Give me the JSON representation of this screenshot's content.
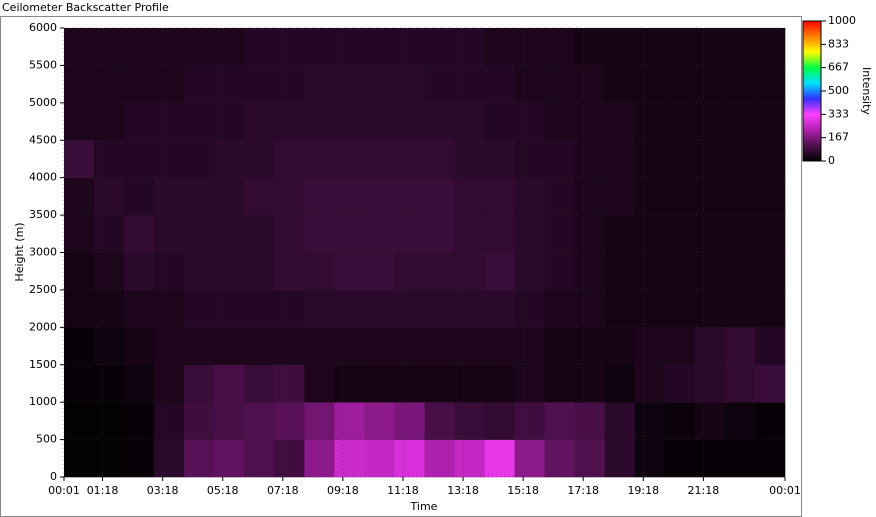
{
  "chart_data": {
    "type": "heatmap",
    "title": "Ceilometer Backscatter Profile",
    "x_label": "Time",
    "y_label": "Height (m)",
    "colorbar_label": "Intensity",
    "xbins": [
      1,
      61,
      121,
      181,
      241,
      301,
      361,
      421,
      481,
      541,
      601,
      661,
      721,
      781,
      841,
      901,
      961,
      1021,
      1081,
      1141,
      1201,
      1261,
      1321,
      1381,
      1441
    ],
    "ybins": [
      0,
      500,
      1000,
      1500,
      2000,
      2500,
      3000,
      3500,
      4000,
      4500,
      5000,
      5500,
      6000
    ],
    "values": [
      [
        5,
        5,
        10,
        60,
        120,
        130,
        110,
        90,
        180,
        260,
        250,
        280,
        220,
        250,
        300,
        180,
        130,
        110,
        60,
        20,
        10,
        10,
        10,
        10
      ],
      [
        5,
        5,
        10,
        50,
        90,
        100,
        110,
        120,
        150,
        200,
        180,
        160,
        100,
        80,
        70,
        90,
        110,
        100,
        60,
        20,
        15,
        30,
        20,
        10
      ],
      [
        10,
        10,
        20,
        40,
        80,
        100,
        80,
        90,
        40,
        30,
        30,
        30,
        30,
        30,
        30,
        40,
        30,
        30,
        20,
        40,
        50,
        60,
        70,
        80
      ],
      [
        10,
        20,
        30,
        40,
        40,
        40,
        40,
        40,
        40,
        40,
        40,
        40,
        40,
        40,
        40,
        40,
        30,
        30,
        30,
        40,
        40,
        60,
        70,
        50
      ],
      [
        30,
        30,
        40,
        40,
        50,
        50,
        50,
        50,
        60,
        60,
        60,
        60,
        60,
        60,
        60,
        50,
        40,
        40,
        30,
        30,
        30,
        30,
        30,
        30
      ],
      [
        30,
        40,
        60,
        50,
        60,
        60,
        60,
        70,
        70,
        80,
        80,
        70,
        70,
        70,
        80,
        60,
        50,
        40,
        30,
        30,
        30,
        30,
        30,
        30
      ],
      [
        40,
        50,
        70,
        60,
        60,
        60,
        60,
        70,
        80,
        80,
        80,
        80,
        80,
        70,
        70,
        60,
        50,
        40,
        30,
        30,
        30,
        30,
        30,
        30
      ],
      [
        40,
        60,
        50,
        60,
        60,
        60,
        70,
        70,
        80,
        80,
        80,
        80,
        80,
        70,
        70,
        60,
        50,
        40,
        40,
        30,
        30,
        30,
        30,
        30
      ],
      [
        80,
        50,
        50,
        50,
        50,
        60,
        60,
        70,
        70,
        70,
        70,
        70,
        70,
        60,
        60,
        50,
        50,
        40,
        40,
        30,
        30,
        30,
        30,
        30
      ],
      [
        40,
        40,
        50,
        50,
        50,
        50,
        60,
        60,
        60,
        60,
        60,
        60,
        60,
        60,
        50,
        50,
        40,
        40,
        40,
        30,
        30,
        30,
        30,
        30
      ],
      [
        40,
        40,
        40,
        40,
        50,
        50,
        50,
        50,
        60,
        60,
        60,
        60,
        50,
        50,
        50,
        40,
        40,
        40,
        30,
        30,
        30,
        30,
        30,
        30
      ],
      [
        40,
        40,
        40,
        40,
        40,
        40,
        50,
        50,
        50,
        50,
        50,
        50,
        50,
        50,
        40,
        40,
        40,
        30,
        30,
        30,
        30,
        30,
        30,
        30
      ]
    ],
    "xlim": [
      1,
      1441
    ],
    "xticks": [
      {
        "value": 1,
        "label": "00:01"
      },
      {
        "value": 78,
        "label": "01:18"
      },
      {
        "value": 198,
        "label": "03:18"
      },
      {
        "value": 318,
        "label": "05:18"
      },
      {
        "value": 438,
        "label": "07:18"
      },
      {
        "value": 558,
        "label": "09:18"
      },
      {
        "value": 678,
        "label": "11:18"
      },
      {
        "value": 798,
        "label": "13:18"
      },
      {
        "value": 918,
        "label": "15:18"
      },
      {
        "value": 1038,
        "label": "17:18"
      },
      {
        "value": 1158,
        "label": "19:18"
      },
      {
        "value": 1278,
        "label": "21:18"
      },
      {
        "value": 1441,
        "label": "00:01"
      }
    ],
    "ylim": [
      0,
      6000
    ],
    "yticks": [
      0,
      500,
      1000,
      1500,
      2000,
      2500,
      3000,
      3500,
      4000,
      4500,
      5000,
      5500,
      6000
    ],
    "clim": [
      0,
      1000
    ],
    "cticks": [
      0,
      167,
      333,
      500,
      667,
      833,
      1000
    ],
    "colormap": [
      "#000000",
      "#50104f",
      "#b020b0",
      "#ff40ff",
      "#3030ff",
      "#00e0ff",
      "#00ff40",
      "#ffff00",
      "#ff8000",
      "#ff0000"
    ],
    "grid": true
  }
}
